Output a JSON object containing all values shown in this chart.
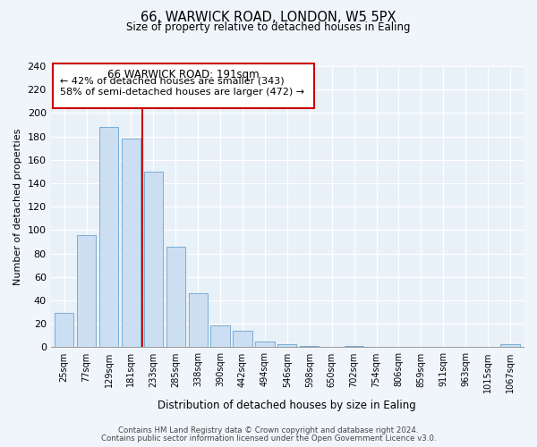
{
  "title1": "66, WARWICK ROAD, LONDON, W5 5PX",
  "title2": "Size of property relative to detached houses in Ealing",
  "xlabel": "Distribution of detached houses by size in Ealing",
  "ylabel": "Number of detached properties",
  "bar_labels": [
    "25sqm",
    "77sqm",
    "129sqm",
    "181sqm",
    "233sqm",
    "285sqm",
    "338sqm",
    "390sqm",
    "442sqm",
    "494sqm",
    "546sqm",
    "598sqm",
    "650sqm",
    "702sqm",
    "754sqm",
    "806sqm",
    "859sqm",
    "911sqm",
    "963sqm",
    "1015sqm",
    "1067sqm"
  ],
  "bar_values": [
    29,
    96,
    188,
    178,
    150,
    86,
    46,
    19,
    14,
    5,
    3,
    1,
    0,
    1,
    0,
    0,
    0,
    0,
    0,
    0,
    3
  ],
  "bar_color": "#ccdff2",
  "bar_edge_color": "#7aadd4",
  "vline_x": 3.5,
  "vline_color": "#cc0000",
  "annotation_box_title": "66 WARWICK ROAD: 191sqm",
  "annotation_line1": "← 42% of detached houses are smaller (343)",
  "annotation_line2": "58% of semi-detached houses are larger (472) →",
  "annotation_box_color": "#cc0000",
  "annotation_bg": "#ffffff",
  "ylim": [
    0,
    240
  ],
  "yticks": [
    0,
    20,
    40,
    60,
    80,
    100,
    120,
    140,
    160,
    180,
    200,
    220,
    240
  ],
  "footer1": "Contains HM Land Registry data © Crown copyright and database right 2024.",
  "footer2": "Contains public sector information licensed under the Open Government Licence v3.0.",
  "bg_color": "#f0f5fb",
  "plot_bg_color": "#e8f0f8"
}
